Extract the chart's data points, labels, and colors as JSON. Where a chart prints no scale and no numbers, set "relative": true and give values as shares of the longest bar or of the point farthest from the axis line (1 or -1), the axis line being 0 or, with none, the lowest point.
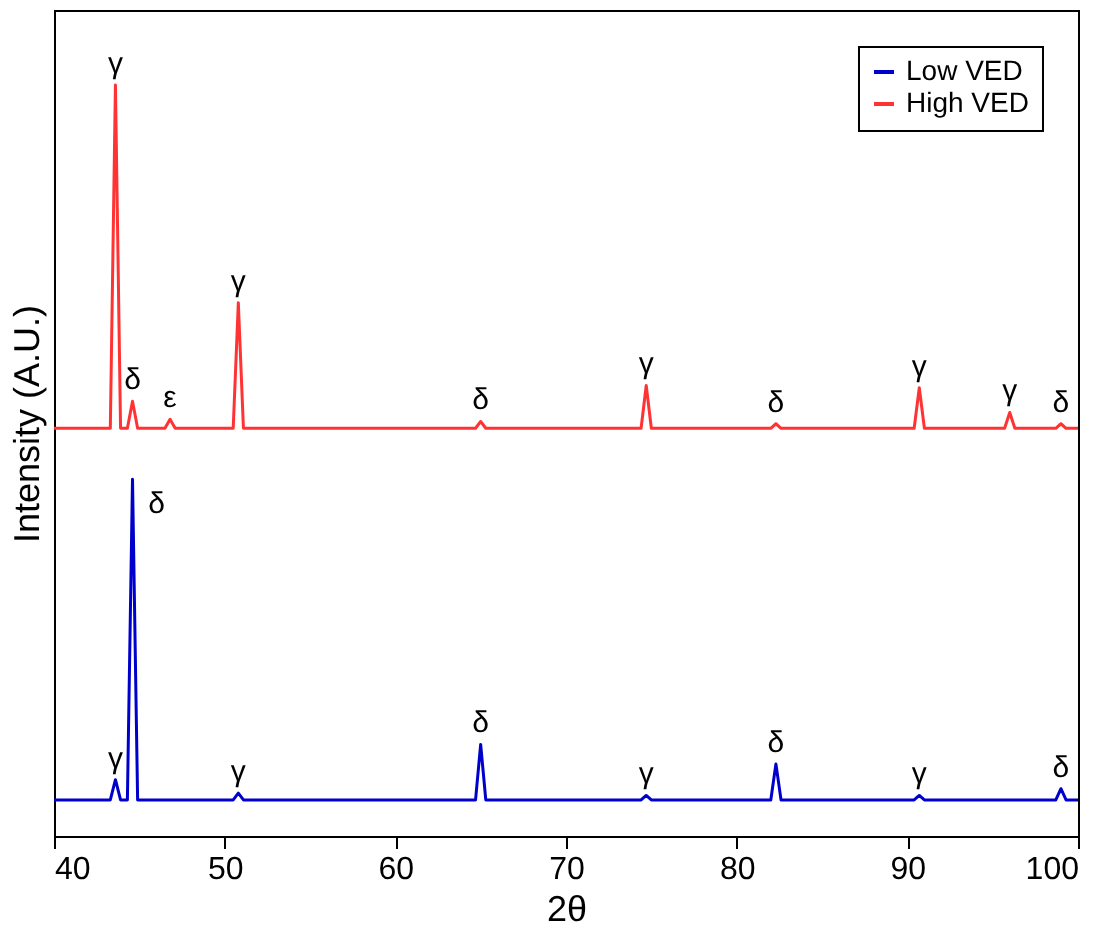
{
  "chart_data": {
    "type": "line",
    "relative": true,
    "xlabel": "2θ",
    "ylabel": "Intensity (A.U.)",
    "xlim": [
      40,
      100
    ],
    "xticks": [
      40,
      50,
      60,
      70,
      80,
      90,
      100
    ],
    "grid": false,
    "legend": "top right",
    "line_style": "solid",
    "marker": "none",
    "series": [
      {
        "name": "Low VED",
        "color": "#0000cc",
        "x": [
          40,
          43.3,
          43.6,
          43.9,
          44.3,
          44.6,
          44.9,
          50.5,
          50.8,
          51.1,
          64.7,
          65.0,
          65.3,
          74.4,
          74.7,
          75.0,
          82.0,
          82.3,
          82.6,
          90.4,
          90.7,
          91.0,
          98.7,
          99.0,
          99.3,
          100
        ],
        "values": [
          0.048,
          0.048,
          0.075,
          0.048,
          0.048,
          0.475,
          0.048,
          0.048,
          0.057,
          0.048,
          0.048,
          0.122,
          0.048,
          0.048,
          0.054,
          0.048,
          0.048,
          0.096,
          0.048,
          0.048,
          0.054,
          0.048,
          0.048,
          0.063,
          0.048,
          0.048
        ]
      },
      {
        "name": "High VED",
        "color": "#ff3333",
        "x": [
          40,
          43.3,
          43.6,
          43.9,
          44.3,
          44.6,
          44.9,
          46.5,
          46.8,
          47.1,
          50.5,
          50.8,
          51.1,
          64.7,
          65.0,
          65.3,
          74.4,
          74.7,
          75.0,
          82.0,
          82.3,
          82.6,
          90.4,
          90.7,
          91.0,
          95.7,
          96.0,
          96.3,
          98.7,
          99.0,
          99.3,
          100
        ],
        "values": [
          0.543,
          0.543,
          1,
          0.543,
          0.543,
          0.579,
          0.543,
          0.543,
          0.555,
          0.543,
          0.543,
          0.71,
          0.543,
          0.543,
          0.552,
          0.543,
          0.543,
          0.6,
          0.543,
          0.543,
          0.549,
          0.543,
          0.543,
          0.597,
          0.543,
          0.543,
          0.564,
          0.543,
          0.543,
          0.549,
          0.543,
          0.543
        ]
      }
    ],
    "annotations": [
      {
        "text": "γ",
        "x": 43.6,
        "y": 0.075
      },
      {
        "text": "δ",
        "x": 44.6,
        "y": 0.475
      },
      {
        "text": "γ",
        "x": 50.8,
        "y": 0.057
      },
      {
        "text": "δ",
        "x": 65.0,
        "y": 0.122
      },
      {
        "text": "γ",
        "x": 74.7,
        "y": 0.054
      },
      {
        "text": "δ",
        "x": 82.3,
        "y": 0.096
      },
      {
        "text": "γ",
        "x": 90.7,
        "y": 0.054
      },
      {
        "text": "δ",
        "x": 99.0,
        "y": 0.063
      },
      {
        "text": "γ",
        "x": 43.6,
        "y": 1
      },
      {
        "text": "δ",
        "x": 44.6,
        "y": 0.579
      },
      {
        "text": "ε",
        "x": 46.8,
        "y": 0.555
      },
      {
        "text": "γ",
        "x": 50.8,
        "y": 0.71
      },
      {
        "text": "δ",
        "x": 65.0,
        "y": 0.552
      },
      {
        "text": "γ",
        "x": 74.7,
        "y": 0.6
      },
      {
        "text": "δ",
        "x": 82.3,
        "y": 0.549
      },
      {
        "text": "γ",
        "x": 90.7,
        "y": 0.597
      },
      {
        "text": "γ",
        "x": 96.0,
        "y": 0.564
      },
      {
        "text": "δ",
        "x": 99.0,
        "y": 0.549
      }
    ]
  }
}
